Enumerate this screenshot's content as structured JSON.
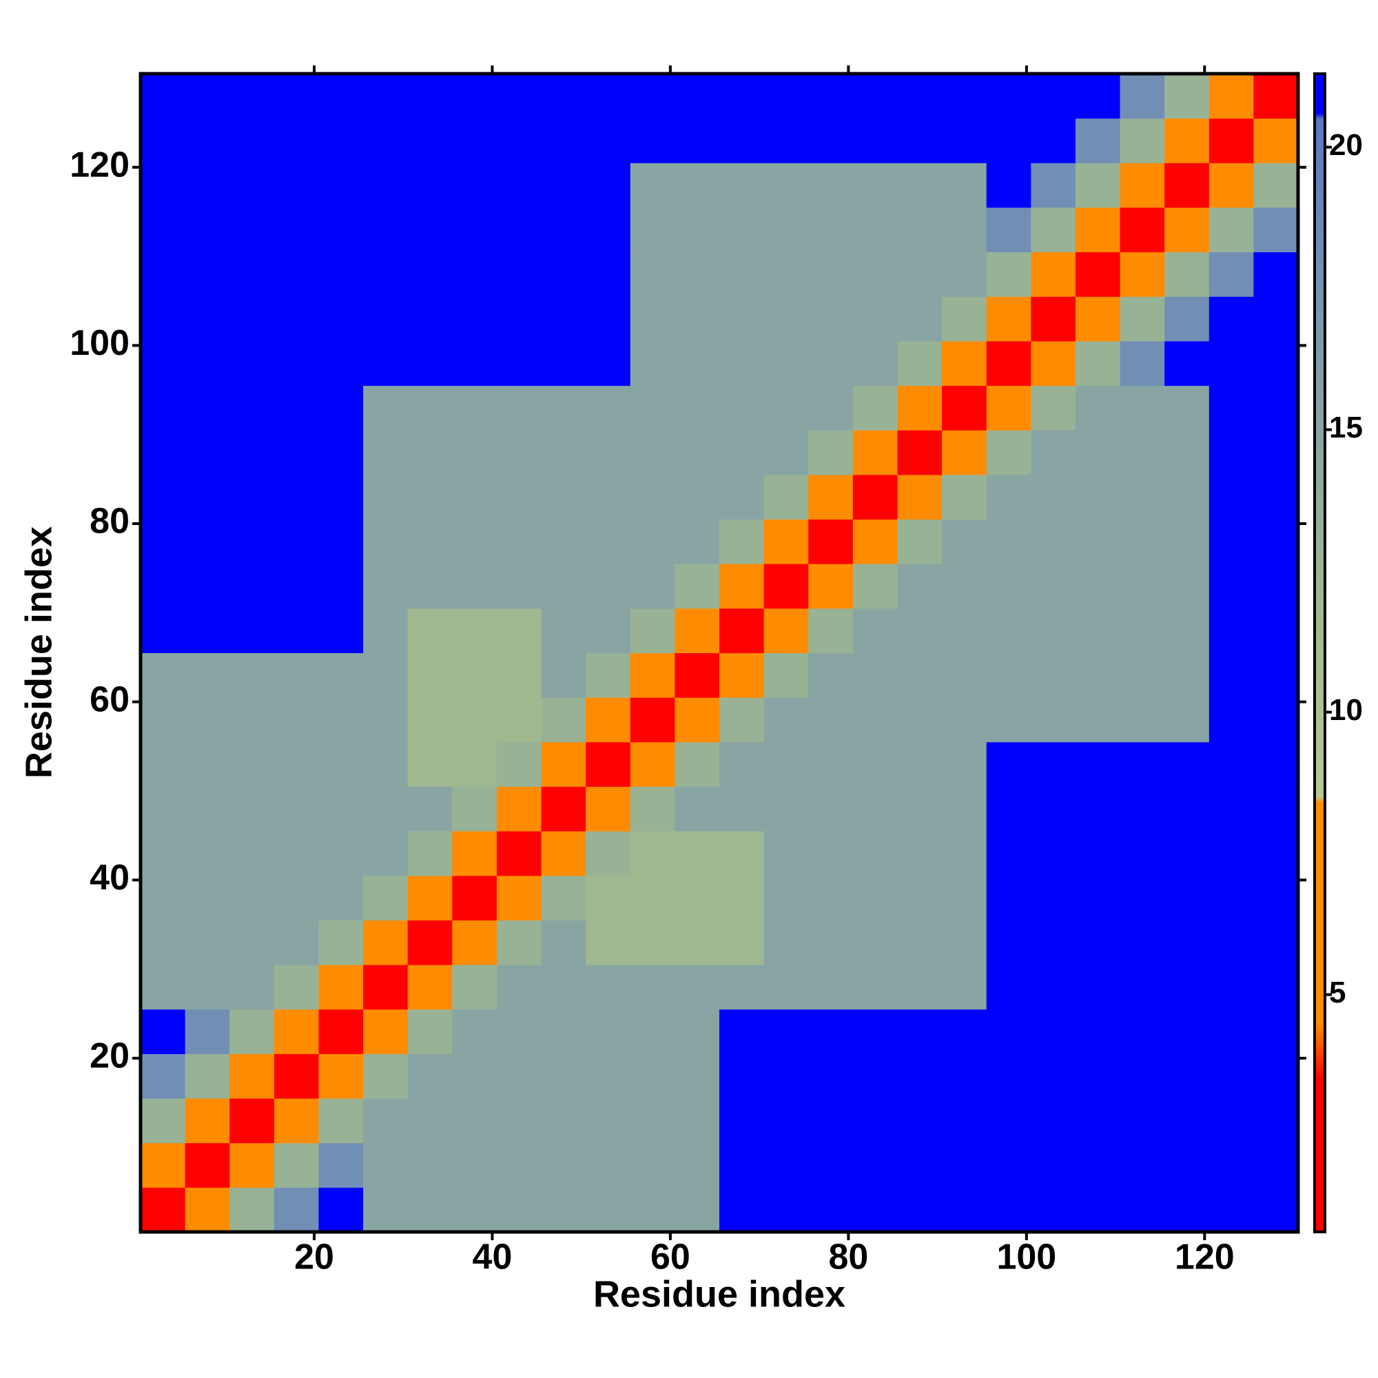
{
  "chart_data": {
    "type": "heatmap",
    "xlabel": "Residue index",
    "ylabel": "Residue index",
    "x": [
      3,
      8,
      13,
      18,
      23,
      28,
      33,
      38,
      43,
      48,
      53,
      58,
      63,
      68,
      73,
      78,
      83,
      88,
      93,
      98,
      103,
      108,
      113,
      118,
      123,
      128
    ],
    "y": [
      3,
      8,
      13,
      18,
      23,
      28,
      33,
      38,
      43,
      48,
      53,
      58,
      63,
      68,
      73,
      78,
      83,
      88,
      93,
      98,
      103,
      108,
      113,
      118,
      123,
      128
    ],
    "z": [
      [
        3,
        8,
        13,
        18,
        21,
        15,
        15,
        15,
        15,
        15,
        15,
        15,
        15,
        21,
        21,
        21,
        21,
        21,
        21,
        21,
        21,
        21,
        21,
        21,
        21,
        21
      ],
      [
        8,
        3,
        8,
        13,
        18,
        15,
        15,
        15,
        15,
        15,
        15,
        15,
        15,
        21,
        21,
        21,
        21,
        21,
        21,
        21,
        21,
        21,
        21,
        21,
        21,
        21
      ],
      [
        13,
        8,
        3,
        8,
        13,
        15,
        15,
        15,
        15,
        15,
        15,
        15,
        15,
        21,
        21,
        21,
        21,
        21,
        21,
        21,
        21,
        21,
        21,
        21,
        21,
        21
      ],
      [
        18,
        13,
        8,
        3,
        8,
        13,
        15,
        15,
        15,
        15,
        15,
        15,
        15,
        21,
        21,
        21,
        21,
        21,
        21,
        21,
        21,
        21,
        21,
        21,
        21,
        21
      ],
      [
        21,
        18,
        13,
        8,
        3,
        8,
        13,
        15,
        15,
        15,
        15,
        15,
        15,
        21,
        21,
        21,
        21,
        21,
        21,
        21,
        21,
        21,
        21,
        21,
        21,
        21
      ],
      [
        15,
        15,
        15,
        13,
        8,
        3,
        8,
        13,
        15,
        15,
        15,
        15,
        15,
        15,
        15,
        15,
        15,
        15,
        15,
        21,
        21,
        21,
        21,
        21,
        21,
        21
      ],
      [
        15,
        15,
        15,
        15,
        13,
        8,
        3,
        8,
        13,
        15,
        12,
        12,
        12,
        12,
        15,
        15,
        15,
        15,
        15,
        21,
        21,
        21,
        21,
        21,
        21,
        21
      ],
      [
        15,
        15,
        15,
        15,
        15,
        13,
        8,
        3,
        8,
        13,
        12,
        12,
        12,
        12,
        15,
        15,
        15,
        15,
        15,
        21,
        21,
        21,
        21,
        21,
        21,
        21
      ],
      [
        15,
        15,
        15,
        15,
        15,
        15,
        13,
        8,
        3,
        8,
        13,
        12,
        12,
        12,
        15,
        15,
        15,
        15,
        15,
        21,
        21,
        21,
        21,
        21,
        21,
        21
      ],
      [
        15,
        15,
        15,
        15,
        15,
        15,
        15,
        13,
        8,
        3,
        8,
        13,
        15,
        15,
        15,
        15,
        15,
        15,
        15,
        21,
        21,
        21,
        21,
        21,
        21,
        21
      ],
      [
        15,
        15,
        15,
        15,
        15,
        15,
        12,
        12,
        13,
        8,
        3,
        8,
        13,
        15,
        15,
        15,
        15,
        15,
        15,
        21,
        21,
        21,
        21,
        21,
        21,
        21
      ],
      [
        15,
        15,
        15,
        15,
        15,
        15,
        12,
        12,
        12,
        13,
        8,
        3,
        8,
        13,
        15,
        15,
        15,
        15,
        15,
        15,
        15,
        15,
        15,
        15,
        21,
        21
      ],
      [
        15,
        15,
        15,
        15,
        15,
        15,
        12,
        12,
        12,
        15,
        13,
        8,
        3,
        8,
        13,
        15,
        15,
        15,
        15,
        15,
        15,
        15,
        15,
        15,
        21,
        21
      ],
      [
        21,
        21,
        21,
        21,
        21,
        15,
        12,
        12,
        12,
        15,
        15,
        13,
        8,
        3,
        8,
        13,
        15,
        15,
        15,
        15,
        15,
        15,
        15,
        15,
        21,
        21
      ],
      [
        21,
        21,
        21,
        21,
        21,
        15,
        15,
        15,
        15,
        15,
        15,
        15,
        13,
        8,
        3,
        8,
        13,
        15,
        15,
        15,
        15,
        15,
        15,
        15,
        21,
        21
      ],
      [
        21,
        21,
        21,
        21,
        21,
        15,
        15,
        15,
        15,
        15,
        15,
        15,
        15,
        13,
        8,
        3,
        8,
        13,
        15,
        15,
        15,
        15,
        15,
        15,
        21,
        21
      ],
      [
        21,
        21,
        21,
        21,
        21,
        15,
        15,
        15,
        15,
        15,
        15,
        15,
        15,
        15,
        13,
        8,
        3,
        8,
        13,
        15,
        15,
        15,
        15,
        15,
        21,
        21
      ],
      [
        21,
        21,
        21,
        21,
        21,
        15,
        15,
        15,
        15,
        15,
        15,
        15,
        15,
        15,
        15,
        13,
        8,
        3,
        8,
        13,
        15,
        15,
        15,
        15,
        21,
        21
      ],
      [
        21,
        21,
        21,
        21,
        21,
        15,
        15,
        15,
        15,
        15,
        15,
        15,
        15,
        15,
        15,
        15,
        13,
        8,
        3,
        8,
        13,
        15,
        15,
        15,
        21,
        21
      ],
      [
        21,
        21,
        21,
        21,
        21,
        21,
        21,
        21,
        21,
        21,
        21,
        15,
        15,
        15,
        15,
        15,
        15,
        13,
        8,
        3,
        8,
        13,
        18,
        21,
        21,
        21
      ],
      [
        21,
        21,
        21,
        21,
        21,
        21,
        21,
        21,
        21,
        21,
        21,
        15,
        15,
        15,
        15,
        15,
        15,
        15,
        13,
        8,
        3,
        8,
        13,
        18,
        21,
        21
      ],
      [
        21,
        21,
        21,
        21,
        21,
        21,
        21,
        21,
        21,
        21,
        21,
        15,
        15,
        15,
        15,
        15,
        15,
        15,
        15,
        13,
        8,
        3,
        8,
        13,
        18,
        21
      ],
      [
        21,
        21,
        21,
        21,
        21,
        21,
        21,
        21,
        21,
        21,
        21,
        15,
        15,
        15,
        15,
        15,
        15,
        15,
        15,
        18,
        13,
        8,
        3,
        8,
        13,
        18
      ],
      [
        21,
        21,
        21,
        21,
        21,
        21,
        21,
        21,
        21,
        21,
        21,
        15,
        15,
        15,
        15,
        15,
        15,
        15,
        15,
        21,
        18,
        13,
        8,
        3,
        8,
        13
      ],
      [
        21,
        21,
        21,
        21,
        21,
        21,
        21,
        21,
        21,
        21,
        21,
        21,
        21,
        21,
        21,
        21,
        21,
        21,
        21,
        21,
        21,
        18,
        13,
        8,
        3,
        8
      ],
      [
        21,
        21,
        21,
        21,
        21,
        21,
        21,
        21,
        21,
        21,
        21,
        21,
        21,
        21,
        21,
        21,
        21,
        21,
        21,
        21,
        21,
        21,
        18,
        13,
        8,
        3
      ]
    ],
    "xlim": [
      0.5,
      130.5
    ],
    "ylim": [
      0.5,
      130.5
    ],
    "xticks": [
      20,
      40,
      60,
      80,
      100,
      120
    ],
    "yticks": [
      20,
      40,
      60,
      80,
      100,
      120
    ],
    "clim": [
      0.8,
      21.3
    ],
    "cticks": [
      5,
      10,
      15,
      20
    ],
    "colorscale": [
      [
        0.8,
        "#ff0000"
      ],
      [
        3.5,
        "#ff0000"
      ],
      [
        4.5,
        "#ff8c00"
      ],
      [
        8.4,
        "#ff8c00"
      ],
      [
        8.5,
        "#b8c890"
      ],
      [
        12,
        "#a0b890"
      ],
      [
        17,
        "#7a98b0"
      ],
      [
        20.5,
        "#5a78c0"
      ],
      [
        20.6,
        "#0000ff"
      ],
      [
        21.3,
        "#0000ff"
      ]
    ]
  }
}
